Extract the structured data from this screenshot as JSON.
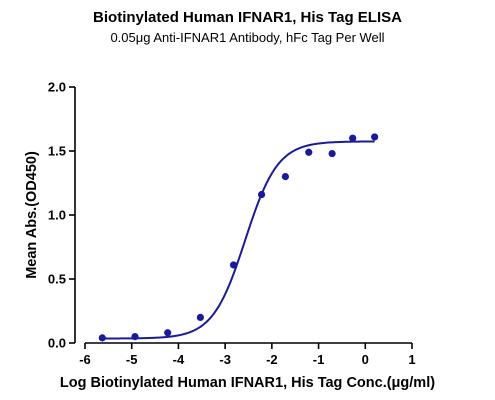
{
  "chart_data": {
    "type": "scatter",
    "title": "Biotinylated Human IFNAR1, His Tag ELISA",
    "subtitle": "0.05μg Anti-IFNAR1 Antibody, hFc Tag Per Well",
    "xlabel": "Log Biotinylated Human IFNAR1, His Tag Conc.(μg/ml)",
    "ylabel": "Mean Abs.(OD450)",
    "xlim": [
      -6,
      1
    ],
    "ylim": [
      0,
      2
    ],
    "x_ticks": [
      -6,
      -5,
      -4,
      -3,
      -2,
      -1,
      0,
      1
    ],
    "x_tick_labels": [
      "-6",
      "-5",
      "-4",
      "-3",
      "-2",
      "-1",
      "0",
      "1"
    ],
    "y_ticks": [
      0,
      0.5,
      1.0,
      1.5,
      2.0
    ],
    "y_tick_labels": [
      "0.0",
      "0.5",
      "1.0",
      "1.5",
      "2.0"
    ],
    "grid": false,
    "legend": "none",
    "point_color": "#1a1a9e",
    "curve_color": "#1a1a9e",
    "series": [
      {
        "x": [
          -5.63,
          -4.93,
          -4.23,
          -3.53,
          -2.82,
          -2.22,
          -1.71,
          -1.21,
          -0.71,
          -0.27,
          0.2
        ],
        "y": [
          0.04,
          0.05,
          0.08,
          0.2,
          0.61,
          1.16,
          1.3,
          1.49,
          1.48,
          1.6,
          1.61
        ]
      }
    ],
    "fit_curve": {
      "model": "4PL",
      "bottom": 0.035,
      "top": 1.575,
      "log_ec50": -2.57,
      "hill": 1.25,
      "x_range": [
        -5.63,
        0.2
      ]
    }
  }
}
